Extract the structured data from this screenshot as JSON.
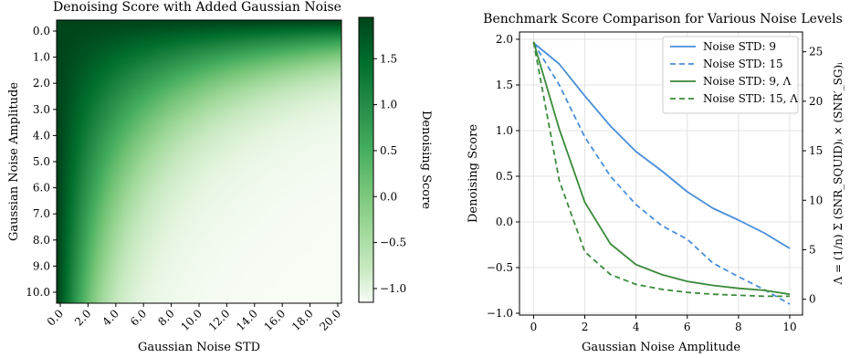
{
  "chart_data": [
    {
      "type": "heatmap",
      "title": "Denoising Score with Added Gaussian Noise",
      "xlabel": "Gaussian Noise STD",
      "ylabel": "Gaussian Noise Amplitude",
      "x_ticks": [
        "0.0",
        "2.0",
        "4.0",
        "6.0",
        "8.0",
        "10.0",
        "12.0",
        "14.0",
        "16.0",
        "18.0",
        "20.0"
      ],
      "y_ticks": [
        "0.0",
        "1.0",
        "2.0",
        "3.0",
        "4.0",
        "5.0",
        "6.0",
        "7.0",
        "8.0",
        "9.0",
        "10.0"
      ],
      "x_range": [
        0,
        20
      ],
      "y_range": [
        0,
        10
      ],
      "colormap": "Greens",
      "colorbar": {
        "label": "Denoising Score",
        "range": [
          -1.15,
          1.95
        ],
        "ticks": [
          1.5,
          1.0,
          0.5,
          0.0,
          -0.5,
          -1.0
        ],
        "tick_labels": [
          "1.5",
          "1.0",
          "0.5",
          "0.0",
          "−0.5",
          "−1.0"
        ]
      }
    },
    {
      "type": "line",
      "title": "Benchmark Score Comparison for Various Noise Levels",
      "xlabel": "Gaussian Noise Amplitude",
      "ylabel": "Denoising Score",
      "y2label": "Λ = (1/n) Σ (SNR_SQUID)ᵢ × (SNR′_SG)ᵢ",
      "xlim": [
        -0.55,
        10.5
      ],
      "ylim": [
        -1.02,
        2.08
      ],
      "y2lim": [
        -1.6,
        27.0
      ],
      "grid": true,
      "legend_position": "top-right",
      "x_ticks": [
        0,
        2,
        4,
        6,
        8,
        10
      ],
      "y_ticks": [
        2.0,
        1.5,
        1.0,
        0.5,
        0.0,
        -0.5,
        -1.0
      ],
      "y_tick_labels": [
        "2.0",
        "1.5",
        "1.0",
        "0.5",
        "0.0",
        "−0.5",
        "−1.0"
      ],
      "y2_ticks": [
        25,
        20,
        15,
        10,
        5,
        0
      ],
      "y2_tick_labels": [
        "25",
        "20",
        "15",
        "10",
        "5",
        "0"
      ],
      "x": [
        0,
        1,
        2,
        3,
        4,
        5,
        6,
        7,
        8,
        9,
        10
      ],
      "series": [
        {
          "name": "Noise STD: 9",
          "axis": "left",
          "color": "#4a8ed8",
          "dash": "solid",
          "values": [
            1.96,
            1.73,
            1.38,
            1.05,
            0.77,
            0.56,
            0.33,
            0.15,
            0.02,
            -0.12,
            -0.29
          ]
        },
        {
          "name": "Noise STD: 15",
          "axis": "left",
          "color": "#4a8ed8",
          "dash": "dashed",
          "values": [
            1.96,
            1.5,
            0.93,
            0.5,
            0.19,
            -0.04,
            -0.19,
            -0.45,
            -0.6,
            -0.74,
            -0.9
          ]
        },
        {
          "name": "Noise STD: 9, Λ",
          "axis": "right",
          "color": "#3a8a3a",
          "dash": "solid",
          "values": [
            26.0,
            17.2,
            9.8,
            5.6,
            3.5,
            2.5,
            1.8,
            1.4,
            1.1,
            0.9,
            0.5
          ]
        },
        {
          "name": "Noise STD: 15, Λ",
          "axis": "right",
          "color": "#3a8a3a",
          "dash": "dashed",
          "values": [
            26.0,
            12.0,
            4.8,
            2.5,
            1.5,
            1.0,
            0.7,
            0.5,
            0.4,
            0.3,
            0.3
          ]
        }
      ]
    }
  ]
}
